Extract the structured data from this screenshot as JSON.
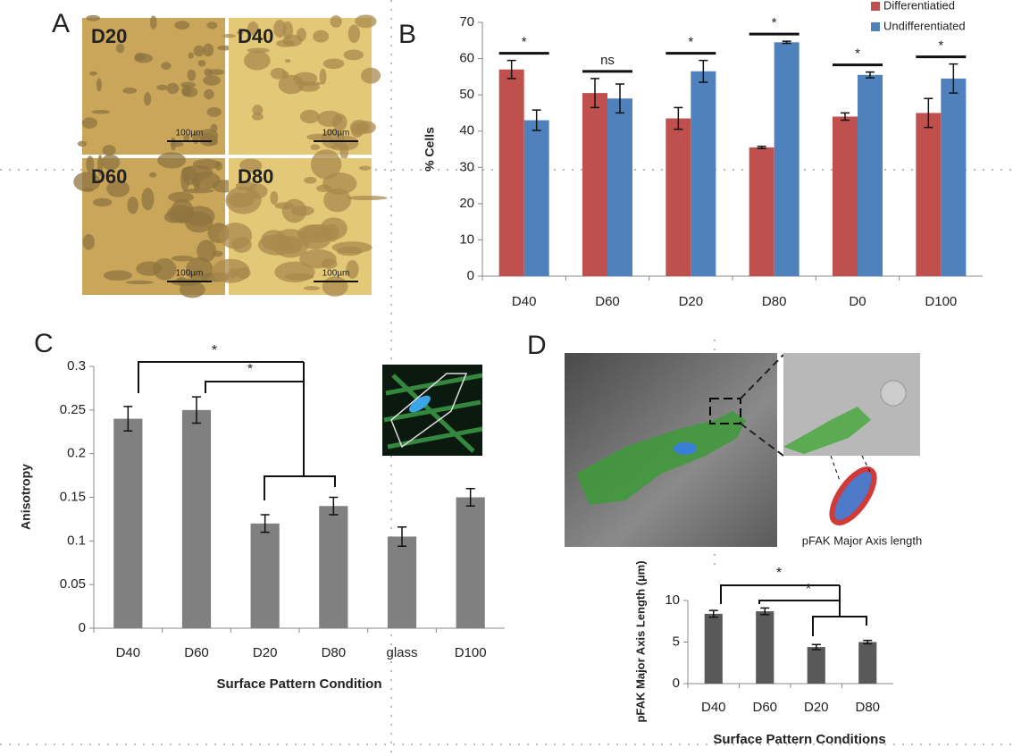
{
  "panels": [
    "A",
    "B",
    "C",
    "D"
  ],
  "micrographs": [
    {
      "label": "D20",
      "scale_bar": "100µm"
    },
    {
      "label": "D40",
      "scale_bar": "100µm"
    },
    {
      "label": "D60",
      "scale_bar": "100µm"
    },
    {
      "label": "D80",
      "scale_bar": "100µm"
    }
  ],
  "cell_image_caption": "pFAK Major Axis length",
  "chart_data": [
    {
      "type": "bar",
      "ylabel": "% Cells",
      "categories": [
        "D40",
        "D60",
        "D20",
        "D80",
        "D0",
        "D100"
      ],
      "series": [
        {
          "name": "Differentiatied",
          "color": "#c0504d",
          "values": [
            57,
            50.5,
            43.5,
            35.5,
            44,
            45
          ],
          "errors": [
            2.5,
            4,
            3,
            0.3,
            1,
            4
          ]
        },
        {
          "name": "Undifferentiated",
          "color": "#4f81bd",
          "values": [
            43,
            49,
            56.5,
            64.5,
            55.5,
            54.5
          ],
          "errors": [
            2.8,
            4,
            3,
            0.3,
            0.8,
            4
          ]
        }
      ],
      "ylim": [
        0,
        70
      ],
      "yticks": [
        0,
        10,
        20,
        30,
        40,
        50,
        60,
        70
      ],
      "legend": "top-right",
      "annotations": [
        "*",
        "ns",
        "*",
        "*",
        "*",
        "*"
      ]
    },
    {
      "type": "bar",
      "ylabel": "Anisotropy",
      "xlabel": "Surface Pattern Condition",
      "categories": [
        "D40",
        "D60",
        "D20",
        "D80",
        "glass",
        "D100"
      ],
      "values": [
        0.24,
        0.25,
        0.12,
        0.14,
        0.105,
        0.15
      ],
      "errors": [
        0.014,
        0.015,
        0.01,
        0.01,
        0.011,
        0.01
      ],
      "color": "#808080",
      "ylim": [
        0,
        0.3
      ],
      "yticks": [
        0,
        0.05,
        0.1,
        0.15,
        0.2,
        0.25,
        0.3
      ],
      "annotations": [
        "*",
        "*"
      ]
    },
    {
      "type": "bar",
      "ylabel": "pFAK Major Axis Length (µm)",
      "xlabel": "Surface Pattern Conditions",
      "categories": [
        "D40",
        "D60",
        "D20",
        "D80"
      ],
      "values": [
        8.4,
        8.7,
        4.4,
        5
      ],
      "errors": [
        0.4,
        0.4,
        0.3,
        0.2
      ],
      "color": "#595959",
      "ylim": [
        0,
        10
      ],
      "yticks": [
        0,
        5,
        10
      ],
      "annotations": [
        "*",
        "*"
      ]
    }
  ]
}
